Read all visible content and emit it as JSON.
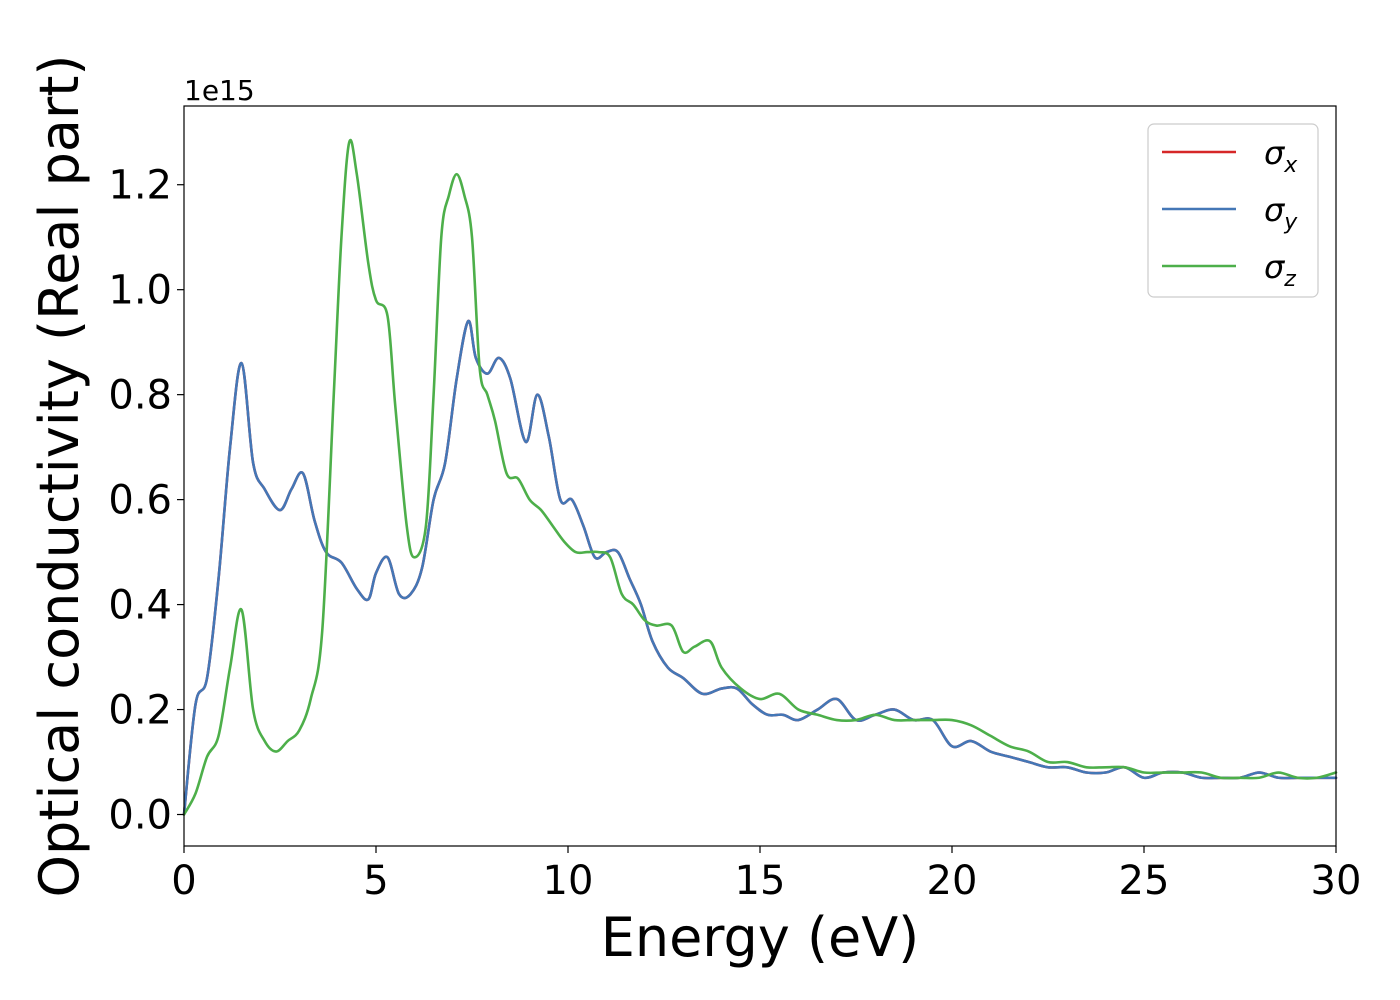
{
  "chart_data": {
    "type": "line",
    "title": "",
    "xlabel": "Energy (eV)",
    "ylabel": "Optical conductivity (Real part)",
    "y_scale_label": "1e15",
    "y_scale": 1000000000000000.0,
    "xlim": [
      0,
      30
    ],
    "ylim": [
      -0.06,
      1.35
    ],
    "x_ticks": [
      0,
      5,
      10,
      15,
      20,
      25,
      30
    ],
    "x_tick_labels": [
      "0",
      "5",
      "10",
      "15",
      "20",
      "25",
      "30"
    ],
    "y_ticks": [
      0.0,
      0.2,
      0.4,
      0.6,
      0.8,
      1.0,
      1.2
    ],
    "y_tick_labels": [
      "0.0",
      "0.2",
      "0.4",
      "0.6",
      "0.8",
      "1.0",
      "1.2"
    ],
    "grid": false,
    "legend_position": "top-right",
    "series": [
      {
        "name": "σx",
        "legend_symbol": "σ",
        "legend_subscript": "x",
        "color": "#d62728",
        "x": [
          0,
          0.3,
          0.6,
          0.9,
          1.2,
          1.5,
          1.8,
          2.1,
          2.5,
          2.8,
          3.1,
          3.4,
          3.7,
          4.1,
          4.5,
          4.8,
          5.0,
          5.3,
          5.6,
          5.9,
          6.2,
          6.5,
          6.8,
          7.1,
          7.4,
          7.6,
          7.9,
          8.2,
          8.5,
          8.9,
          9.2,
          9.5,
          9.8,
          10.1,
          10.4,
          10.7,
          11.0,
          11.3,
          11.6,
          11.9,
          12.2,
          12.6,
          13.0,
          13.5,
          14.0,
          14.4,
          14.8,
          15.2,
          15.6,
          16.0,
          16.5,
          17.0,
          17.5,
          18.0,
          18.5,
          19.0,
          19.5,
          20.0,
          20.5,
          21.0,
          21.5,
          22.0,
          22.5,
          23.0,
          23.5,
          24.0,
          24.5,
          25.0,
          25.5,
          26.0,
          26.5,
          27.0,
          27.5,
          28.0,
          28.5,
          29.0,
          29.5,
          30.0
        ],
        "values": [
          0.0,
          0.21,
          0.26,
          0.45,
          0.7,
          0.86,
          0.67,
          0.62,
          0.58,
          0.62,
          0.65,
          0.56,
          0.5,
          0.48,
          0.43,
          0.41,
          0.46,
          0.49,
          0.42,
          0.42,
          0.47,
          0.6,
          0.67,
          0.83,
          0.94,
          0.87,
          0.84,
          0.87,
          0.83,
          0.71,
          0.8,
          0.72,
          0.6,
          0.6,
          0.55,
          0.49,
          0.5,
          0.5,
          0.45,
          0.4,
          0.33,
          0.28,
          0.26,
          0.23,
          0.24,
          0.24,
          0.21,
          0.19,
          0.19,
          0.18,
          0.2,
          0.22,
          0.18,
          0.19,
          0.2,
          0.18,
          0.18,
          0.13,
          0.14,
          0.12,
          0.11,
          0.1,
          0.09,
          0.09,
          0.08,
          0.08,
          0.09,
          0.07,
          0.08,
          0.08,
          0.07,
          0.07,
          0.07,
          0.08,
          0.07,
          0.07,
          0.07,
          0.07
        ]
      },
      {
        "name": "σy",
        "legend_symbol": "σ",
        "legend_subscript": "y",
        "color": "#4477b6",
        "x": [
          0,
          0.3,
          0.6,
          0.9,
          1.2,
          1.5,
          1.8,
          2.1,
          2.5,
          2.8,
          3.1,
          3.4,
          3.7,
          4.1,
          4.5,
          4.8,
          5.0,
          5.3,
          5.6,
          5.9,
          6.2,
          6.5,
          6.8,
          7.1,
          7.4,
          7.6,
          7.9,
          8.2,
          8.5,
          8.9,
          9.2,
          9.5,
          9.8,
          10.1,
          10.4,
          10.7,
          11.0,
          11.3,
          11.6,
          11.9,
          12.2,
          12.6,
          13.0,
          13.5,
          14.0,
          14.4,
          14.8,
          15.2,
          15.6,
          16.0,
          16.5,
          17.0,
          17.5,
          18.0,
          18.5,
          19.0,
          19.5,
          20.0,
          20.5,
          21.0,
          21.5,
          22.0,
          22.5,
          23.0,
          23.5,
          24.0,
          24.5,
          25.0,
          25.5,
          26.0,
          26.5,
          27.0,
          27.5,
          28.0,
          28.5,
          29.0,
          29.5,
          30.0
        ],
        "values": [
          0.0,
          0.21,
          0.26,
          0.45,
          0.7,
          0.86,
          0.67,
          0.62,
          0.58,
          0.62,
          0.65,
          0.56,
          0.5,
          0.48,
          0.43,
          0.41,
          0.46,
          0.49,
          0.42,
          0.42,
          0.47,
          0.6,
          0.67,
          0.83,
          0.94,
          0.87,
          0.84,
          0.87,
          0.83,
          0.71,
          0.8,
          0.72,
          0.6,
          0.6,
          0.55,
          0.49,
          0.5,
          0.5,
          0.45,
          0.4,
          0.33,
          0.28,
          0.26,
          0.23,
          0.24,
          0.24,
          0.21,
          0.19,
          0.19,
          0.18,
          0.2,
          0.22,
          0.18,
          0.19,
          0.2,
          0.18,
          0.18,
          0.13,
          0.14,
          0.12,
          0.11,
          0.1,
          0.09,
          0.09,
          0.08,
          0.08,
          0.09,
          0.07,
          0.08,
          0.08,
          0.07,
          0.07,
          0.07,
          0.08,
          0.07,
          0.07,
          0.07,
          0.07
        ]
      },
      {
        "name": "σz",
        "legend_symbol": "σ",
        "legend_subscript": "z",
        "color": "#4daf4a",
        "x": [
          0,
          0.3,
          0.6,
          0.9,
          1.2,
          1.5,
          1.8,
          2.1,
          2.4,
          2.7,
          3.0,
          3.3,
          3.6,
          3.9,
          4.1,
          4.3,
          4.5,
          4.8,
          5.0,
          5.3,
          5.5,
          5.8,
          6.0,
          6.3,
          6.5,
          6.7,
          6.9,
          7.1,
          7.3,
          7.5,
          7.7,
          7.9,
          8.1,
          8.4,
          8.7,
          9.0,
          9.3,
          9.6,
          9.9,
          10.2,
          10.5,
          10.8,
          11.1,
          11.4,
          11.7,
          12.0,
          12.3,
          12.7,
          13.0,
          13.3,
          13.7,
          14.0,
          14.5,
          15.0,
          15.5,
          16.0,
          16.5,
          17.0,
          17.5,
          18.0,
          18.5,
          19.0,
          19.5,
          20.0,
          20.5,
          21.0,
          21.5,
          22.0,
          22.5,
          23.0,
          23.5,
          24.0,
          24.5,
          25.0,
          25.5,
          26.0,
          26.5,
          27.0,
          27.5,
          28.0,
          28.5,
          29.0,
          29.5,
          30.0
        ],
        "values": [
          0.0,
          0.04,
          0.11,
          0.15,
          0.28,
          0.39,
          0.2,
          0.14,
          0.12,
          0.14,
          0.16,
          0.22,
          0.35,
          0.8,
          1.1,
          1.28,
          1.22,
          1.05,
          0.98,
          0.95,
          0.78,
          0.55,
          0.49,
          0.55,
          0.8,
          1.1,
          1.18,
          1.22,
          1.18,
          1.1,
          0.85,
          0.8,
          0.75,
          0.65,
          0.64,
          0.6,
          0.58,
          0.55,
          0.52,
          0.5,
          0.5,
          0.5,
          0.49,
          0.42,
          0.4,
          0.37,
          0.36,
          0.36,
          0.31,
          0.32,
          0.33,
          0.28,
          0.24,
          0.22,
          0.23,
          0.2,
          0.19,
          0.18,
          0.18,
          0.19,
          0.18,
          0.18,
          0.18,
          0.18,
          0.17,
          0.15,
          0.13,
          0.12,
          0.1,
          0.1,
          0.09,
          0.09,
          0.09,
          0.08,
          0.08,
          0.08,
          0.08,
          0.07,
          0.07,
          0.07,
          0.08,
          0.07,
          0.07,
          0.08
        ]
      }
    ]
  }
}
